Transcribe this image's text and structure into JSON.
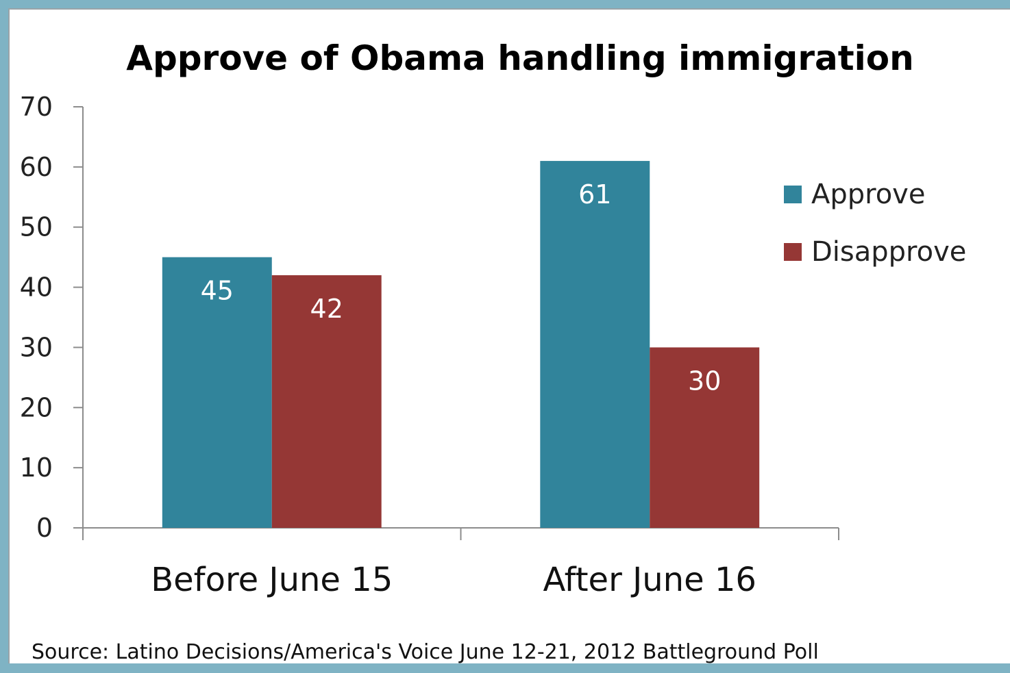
{
  "chart_data": {
    "type": "bar",
    "title": "Approve of Obama handling immigration",
    "categories": [
      "Before June 15",
      "After June 16"
    ],
    "series": [
      {
        "name": "Approve",
        "values": [
          45,
          61
        ],
        "color": "#31849b"
      },
      {
        "name": "Disapprove",
        "values": [
          42,
          30
        ],
        "color": "#953735"
      }
    ],
    "ylim": [
      0,
      70
    ],
    "yticks": [
      0,
      10,
      20,
      30,
      40,
      50,
      60,
      70
    ],
    "grid": false,
    "legend_position": "right",
    "data_labels": true,
    "source": "Source: Latino Decisions/America's Voice June 12-21, 2012 Battleground Poll"
  }
}
